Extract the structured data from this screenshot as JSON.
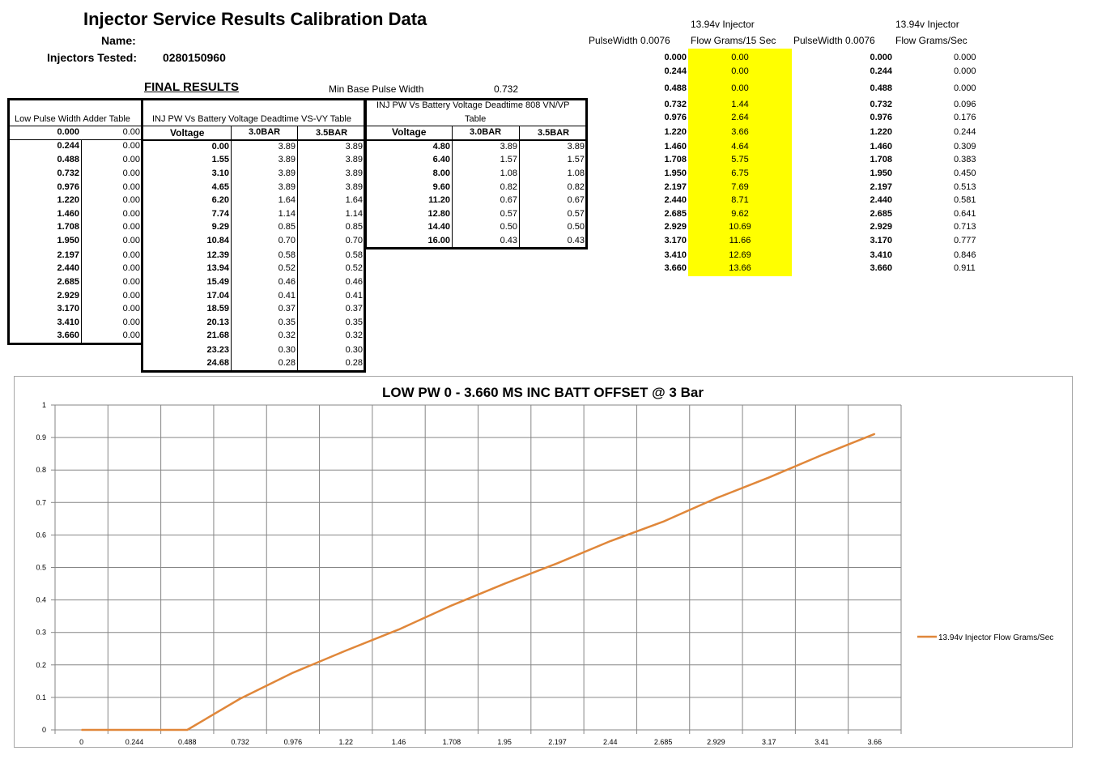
{
  "header": {
    "title": "Injector Service Results Calibration Data",
    "name_label": "Name:",
    "injectors_label": "Injectors Tested:",
    "injectors_value": "0280150960"
  },
  "final": {
    "label": "FINAL RESULTS",
    "min_base_label": "Min Base Pulse Width",
    "min_base_value": "0.732"
  },
  "low_pw_table": {
    "title": "Low Pulse Width Adder Table",
    "rows": [
      [
        "0.000",
        "0.00"
      ],
      [
        "0.244",
        "0.00"
      ],
      [
        "0.488",
        "0.00"
      ],
      [
        "0.732",
        "0.00"
      ],
      [
        "0.976",
        "0.00"
      ],
      [
        "1.220",
        "0.00"
      ],
      [
        "1.460",
        "0.00"
      ],
      [
        "1.708",
        "0.00"
      ],
      [
        "1.950",
        "0.00"
      ],
      [
        "2.197",
        "0.00"
      ],
      [
        "2.440",
        "0.00"
      ],
      [
        "2.685",
        "0.00"
      ],
      [
        "2.929",
        "0.00"
      ],
      [
        "3.170",
        "0.00"
      ],
      [
        "3.410",
        "0.00"
      ],
      [
        "3.660",
        "0.00"
      ]
    ]
  },
  "vsvy_table": {
    "title": "INJ PW Vs Battery Voltage Deadtime VS-VY Table",
    "headers": [
      "Voltage",
      "3.0BAR",
      "3.5BAR"
    ],
    "rows": [
      [
        "0.00",
        "3.89",
        "3.89"
      ],
      [
        "1.55",
        "3.89",
        "3.89"
      ],
      [
        "3.10",
        "3.89",
        "3.89"
      ],
      [
        "4.65",
        "3.89",
        "3.89"
      ],
      [
        "6.20",
        "1.64",
        "1.64"
      ],
      [
        "7.74",
        "1.14",
        "1.14"
      ],
      [
        "9.29",
        "0.85",
        "0.85"
      ],
      [
        "10.84",
        "0.70",
        "0.70"
      ],
      [
        "12.39",
        "0.58",
        "0.58"
      ],
      [
        "13.94",
        "0.52",
        "0.52"
      ],
      [
        "15.49",
        "0.46",
        "0.46"
      ],
      [
        "17.04",
        "0.41",
        "0.41"
      ],
      [
        "18.59",
        "0.37",
        "0.37"
      ],
      [
        "20.13",
        "0.35",
        "0.35"
      ],
      [
        "21.68",
        "0.32",
        "0.32"
      ],
      [
        "23.23",
        "0.30",
        "0.30"
      ],
      [
        "24.68",
        "0.28",
        "0.28"
      ]
    ]
  },
  "vnvp_table": {
    "title_line1": "INJ PW Vs Battery Voltage Deadtime 808 VN/VP",
    "title_line2": "Table",
    "headers": [
      "Voltage",
      "3.0BAR",
      "3.5BAR"
    ],
    "rows": [
      [
        "4.80",
        "3.89",
        "3.89"
      ],
      [
        "6.40",
        "1.57",
        "1.57"
      ],
      [
        "8.00",
        "1.08",
        "1.08"
      ],
      [
        "9.60",
        "0.82",
        "0.82"
      ],
      [
        "11.20",
        "0.67",
        "0.67"
      ],
      [
        "12.80",
        "0.57",
        "0.57"
      ],
      [
        "14.40",
        "0.50",
        "0.50"
      ],
      [
        "16.00",
        "0.43",
        "0.43"
      ]
    ]
  },
  "flow15": {
    "header_top": "13.94v Injector",
    "pw_header": "PulseWidth 0.0076",
    "flow_header": "Flow Grams/15 Sec",
    "highlight_color": "#ffff00",
    "rows": [
      [
        "0.000",
        "0.00"
      ],
      [
        "0.244",
        "0.00"
      ],
      [
        "0.488",
        "0.00"
      ],
      [
        "0.732",
        "1.44"
      ],
      [
        "0.976",
        "2.64"
      ],
      [
        "1.220",
        "3.66"
      ],
      [
        "1.460",
        "4.64"
      ],
      [
        "1.708",
        "5.75"
      ],
      [
        "1.950",
        "6.75"
      ],
      [
        "2.197",
        "7.69"
      ],
      [
        "2.440",
        "8.71"
      ],
      [
        "2.685",
        "9.62"
      ],
      [
        "2.929",
        "10.69"
      ],
      [
        "3.170",
        "11.66"
      ],
      [
        "3.410",
        "12.69"
      ],
      [
        "3.660",
        "13.66"
      ]
    ]
  },
  "flowsec": {
    "header_top": "13.94v Injector",
    "pw_header": "PulseWidth 0.0076",
    "flow_header": "Flow Grams/Sec",
    "rows": [
      [
        "0.000",
        "0.000"
      ],
      [
        "0.244",
        "0.000"
      ],
      [
        "0.488",
        "0.000"
      ],
      [
        "0.732",
        "0.096"
      ],
      [
        "0.976",
        "0.176"
      ],
      [
        "1.220",
        "0.244"
      ],
      [
        "1.460",
        "0.309"
      ],
      [
        "1.708",
        "0.383"
      ],
      [
        "1.950",
        "0.450"
      ],
      [
        "2.197",
        "0.513"
      ],
      [
        "2.440",
        "0.581"
      ],
      [
        "2.685",
        "0.641"
      ],
      [
        "2.929",
        "0.713"
      ],
      [
        "3.170",
        "0.777"
      ],
      [
        "3.410",
        "0.846"
      ],
      [
        "3.660",
        "0.911"
      ]
    ]
  },
  "chart_data": {
    "type": "line",
    "title": "LOW PW 0 - 3.660 MS INC BATT OFFSET @ 3 Bar",
    "xlabel": "",
    "ylabel": "",
    "categories": [
      "0",
      "0.244",
      "0.488",
      "0.732",
      "0.976",
      "1.22",
      "1.46",
      "1.708",
      "1.95",
      "2.197",
      "2.44",
      "2.685",
      "2.929",
      "3.17",
      "3.41",
      "3.66"
    ],
    "y_ticks": [
      "0",
      "0.1",
      "0.2",
      "0.3",
      "0.4",
      "0.5",
      "0.6",
      "0.7",
      "0.8",
      "0.9",
      "1"
    ],
    "ylim": [
      0,
      1
    ],
    "grid": true,
    "legend_position": "right",
    "series": [
      {
        "name": "13.94v Injector Flow Grams/Sec",
        "color": "#e0873a",
        "values": [
          0,
          0,
          0,
          0.096,
          0.176,
          0.244,
          0.309,
          0.383,
          0.45,
          0.513,
          0.581,
          0.641,
          0.713,
          0.777,
          0.846,
          0.911
        ]
      }
    ]
  }
}
